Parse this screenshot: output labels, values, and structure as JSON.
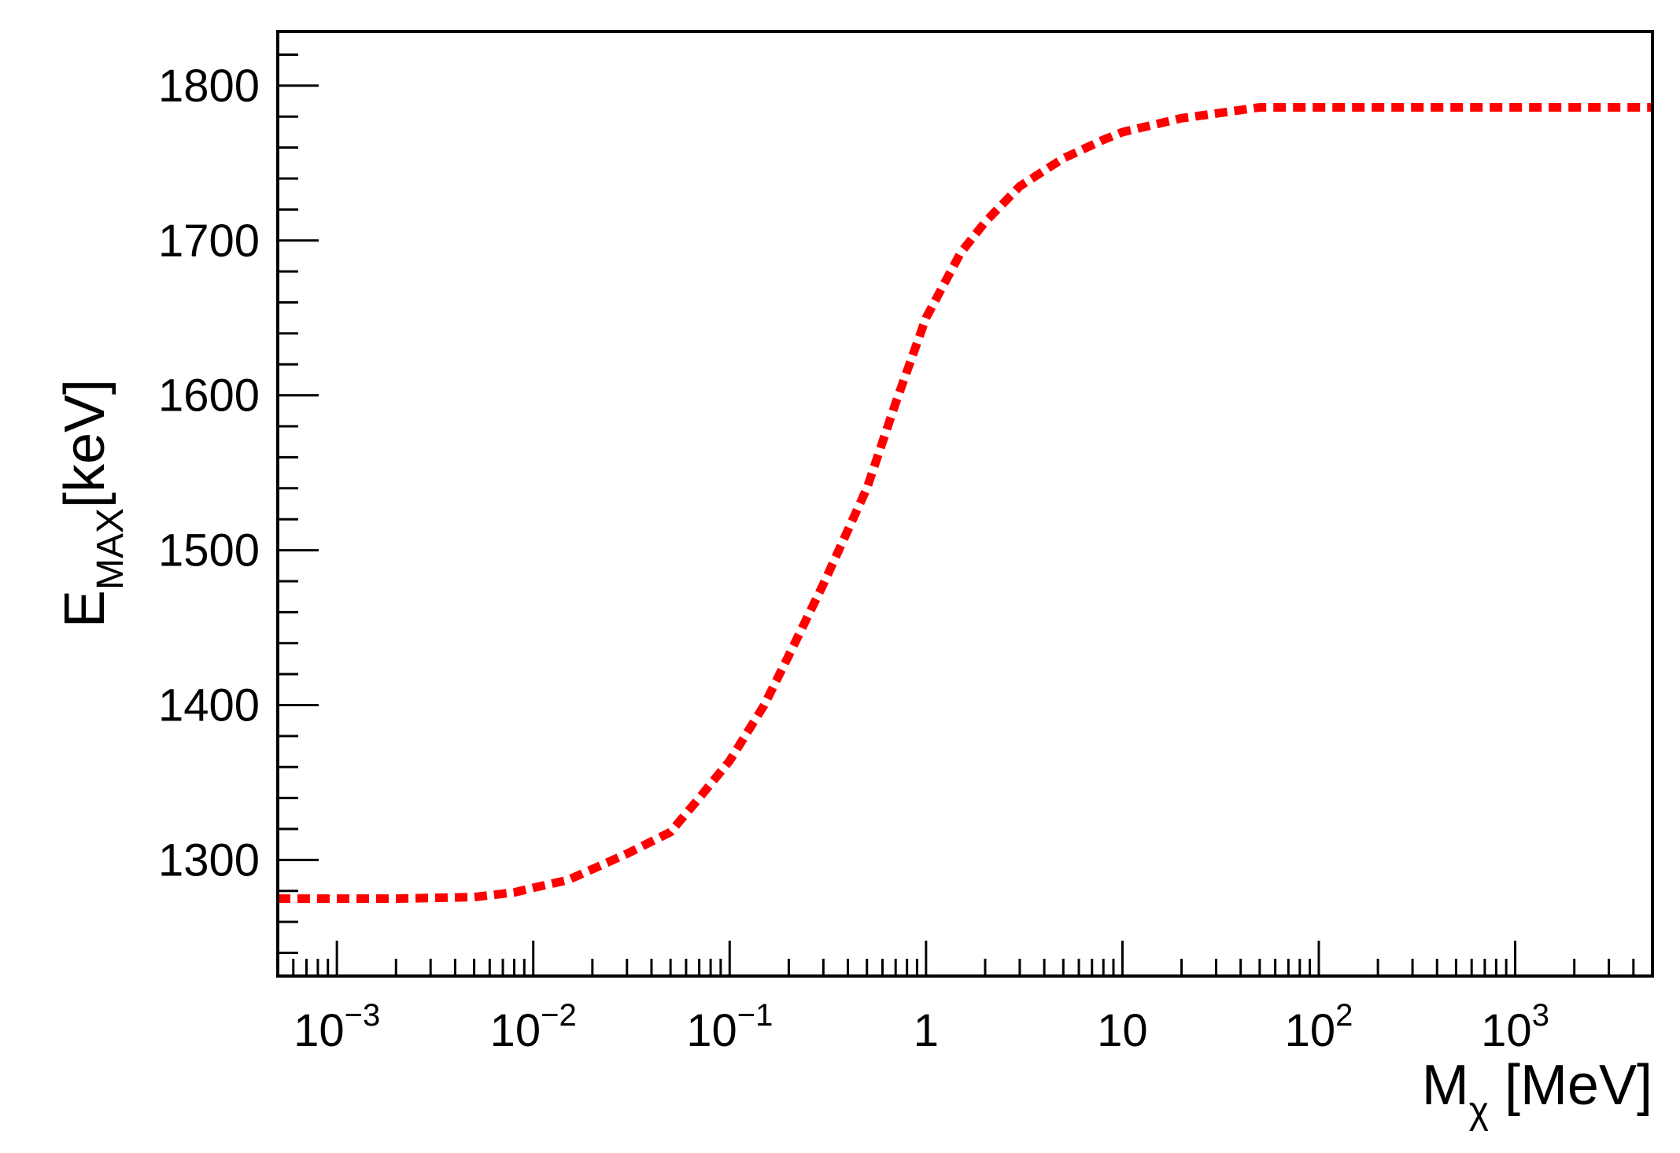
{
  "chart_data": {
    "type": "line",
    "title": "",
    "x_scale": "log",
    "xlim": [
      0.0005,
      5000
    ],
    "ylim": [
      1225,
      1835
    ],
    "grid": false,
    "legend": "none",
    "xlabel": {
      "main": "M",
      "sub": "χ",
      "tail": " [MeV]"
    },
    "ylabel": {
      "main": "E",
      "sub": "MAX",
      "tail": "[keV]"
    },
    "x_tick_labels": [
      {
        "value": 0.001,
        "base": "10",
        "exp": "−3"
      },
      {
        "value": 0.01,
        "base": "10",
        "exp": "−2"
      },
      {
        "value": 0.1,
        "base": "10",
        "exp": "−1"
      },
      {
        "value": 1,
        "base": "1",
        "exp": ""
      },
      {
        "value": 10,
        "base": "10",
        "exp": ""
      },
      {
        "value": 100,
        "base": "10",
        "exp": "2"
      },
      {
        "value": 1000,
        "base": "10",
        "exp": "3"
      }
    ],
    "y_ticks": [
      1300,
      1400,
      1500,
      1600,
      1700,
      1800
    ],
    "series": [
      {
        "color": "#ff0000",
        "style": "dashed",
        "x": [
          0.0005,
          0.001,
          0.002,
          0.005,
          0.008,
          0.01,
          0.015,
          0.02,
          0.03,
          0.05,
          0.07,
          0.1,
          0.15,
          0.2,
          0.3,
          0.5,
          0.7,
          1,
          1.5,
          2,
          3,
          5,
          8,
          10,
          20,
          30,
          50,
          100,
          1000,
          5000
        ],
        "y": [
          1275,
          1275,
          1275,
          1276,
          1279,
          1282,
          1287,
          1294,
          1304,
          1318,
          1340,
          1364,
          1400,
          1432,
          1478,
          1540,
          1595,
          1650,
          1692,
          1712,
          1735,
          1753,
          1765,
          1770,
          1779,
          1782,
          1786,
          1786,
          1786,
          1786
        ]
      }
    ]
  }
}
